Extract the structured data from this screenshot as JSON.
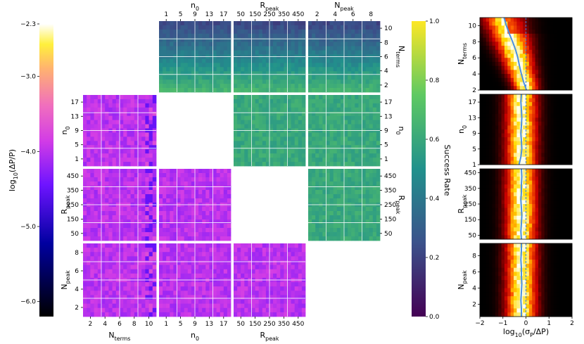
{
  "chart_data": {
    "type": "heatmap",
    "description_grid": "corner-plot of parameter-pair heatmaps with side histograms",
    "parameters": [
      {
        "key": "nterms",
        "base": "N",
        "sub": "terms",
        "ticks": [
          "2",
          "4",
          "6",
          "8",
          "10"
        ],
        "range": [
          1,
          11
        ]
      },
      {
        "key": "n0",
        "base": "n",
        "sub": "0",
        "ticks": [
          "1",
          "5",
          "9",
          "13",
          "17"
        ],
        "range": [
          0,
          19
        ]
      },
      {
        "key": "rpeak",
        "base": "R",
        "sub": "peak",
        "ticks": [
          "50",
          "150",
          "250",
          "350",
          "450"
        ],
        "range": [
          0,
          500
        ]
      },
      {
        "key": "npeak",
        "base": "N",
        "sub": "peak",
        "ticks": [
          "2",
          "4",
          "6",
          "8"
        ],
        "range": [
          0.5,
          9.5
        ]
      }
    ],
    "top_axis": {
      "columns": [
        {
          "base": "n",
          "sub": "0",
          "ticks": [
            "1",
            "5",
            "9",
            "13",
            "17"
          ]
        },
        {
          "base": "R",
          "sub": "peak",
          "ticks": [
            "50",
            "150",
            "250",
            "350",
            "450"
          ]
        },
        {
          "base": "N",
          "sub": "peak",
          "ticks": [
            "2",
            "4",
            "6",
            "8"
          ]
        }
      ]
    },
    "bottom_axis": {
      "columns": [
        {
          "base": "N",
          "sub": "terms",
          "ticks": [
            "2",
            "4",
            "6",
            "8",
            "10"
          ]
        },
        {
          "base": "n",
          "sub": "0",
          "ticks": [
            "1",
            "5",
            "9",
            "13",
            "17"
          ]
        },
        {
          "base": "R",
          "sub": "peak",
          "ticks": [
            "50",
            "150",
            "250",
            "350",
            "450"
          ]
        }
      ]
    },
    "left_axis": {
      "rows": [
        {
          "base": "n",
          "sub": "0",
          "ticks": [
            "17",
            "13",
            "9",
            "5",
            "1"
          ]
        },
        {
          "base": "R",
          "sub": "peak",
          "ticks": [
            "450",
            "350",
            "250",
            "150",
            "50"
          ]
        },
        {
          "base": "N",
          "sub": "peak",
          "ticks": [
            "8",
            "6",
            "4",
            "2"
          ]
        }
      ]
    },
    "right_axis": {
      "rows": [
        {
          "base": "N",
          "sub": "terms",
          "ticks": [
            "10",
            "8",
            "6",
            "4",
            "2"
          ]
        },
        {
          "base": "n",
          "sub": "0",
          "ticks": [
            "17",
            "13",
            "9",
            "5",
            "1"
          ]
        },
        {
          "base": "R",
          "sub": "peak",
          "ticks": [
            "450",
            "350",
            "250",
            "150",
            "50"
          ]
        }
      ]
    },
    "upper_triangle": {
      "metric": "Success Rate",
      "colormap": "viridis",
      "range": [
        0.0,
        1.0
      ],
      "mean_by_row": [
        0.45,
        0.6,
        0.6
      ],
      "nterms_gradient": "success rate rises from ~0.2 at Nterms=10 to ~0.65 at Nterms=2"
    },
    "lower_triangle": {
      "metric": "log10(ΔP/P)",
      "colormap": "gnuplot2",
      "range": [
        -6.2,
        -2.3
      ],
      "typical_value": -4.0
    },
    "colorbar_left": {
      "label": "log10(ΔP/P)",
      "label_base": "log",
      "label_sub": "10",
      "label_rest": "(ΔP/P)",
      "range": [
        -6.2,
        -2.3
      ],
      "ticks": [
        "−2.3",
        "−3.0",
        "−4.0",
        "−5.0",
        "−6.0"
      ],
      "tick_values": [
        -2.3,
        -3.0,
        -4.0,
        -5.0,
        -6.0
      ]
    },
    "colorbar_right": {
      "label": "Success Rate",
      "range": [
        0.0,
        1.0
      ],
      "ticks": [
        "1.0",
        "0.8",
        "0.6",
        "0.4",
        "0.2",
        "0.0"
      ],
      "tick_values": [
        1.0,
        0.8,
        0.6,
        0.4,
        0.2,
        0.0
      ]
    },
    "histograms": {
      "x_label_base": "log",
      "x_label_sub": "10",
      "x_label_rest": "(σ",
      "x_label_sub2": "P",
      "x_label_end": "/ΔP)",
      "x_range": [
        -2,
        2
      ],
      "x_ticks": [
        "−2",
        "−1",
        "0",
        "1",
        "2"
      ],
      "x_tick_values": [
        -2,
        -1,
        0,
        1,
        2
      ],
      "reference_line_x": 0,
      "panels": [
        {
          "param": "nterms",
          "base": "N",
          "sub": "terms",
          "y_ticks": [
            "10",
            "8",
            "6",
            "4",
            "2"
          ],
          "y_values": [
            10,
            8,
            6,
            4,
            2
          ],
          "y_range": [
            2,
            11
          ],
          "median_curve": {
            "y": [
              2,
              3,
              4,
              5,
              6,
              7,
              8,
              9,
              10,
              11
            ],
            "x": [
              0.02,
              -0.1,
              -0.2,
              -0.28,
              -0.35,
              -0.45,
              -0.58,
              -0.72,
              -0.85,
              -0.95
            ]
          }
        },
        {
          "param": "n0",
          "base": "n",
          "sub": "0",
          "y_ticks": [
            "17",
            "13",
            "9",
            "5",
            "1"
          ],
          "y_values": [
            17,
            13,
            9,
            5,
            1
          ],
          "y_range": [
            1,
            19
          ],
          "median_curve": {
            "y": [
              1,
              3,
              5,
              7,
              9,
              11,
              13,
              15,
              17,
              19
            ],
            "x": [
              -0.3,
              -0.22,
              -0.18,
              -0.2,
              -0.22,
              -0.2,
              -0.18,
              -0.2,
              -0.22,
              -0.2
            ]
          }
        },
        {
          "param": "rpeak",
          "base": "R",
          "sub": "peak",
          "y_ticks": [
            "450",
            "350",
            "250",
            "150",
            "50"
          ],
          "y_values": [
            450,
            350,
            250,
            150,
            50
          ],
          "y_range": [
            25,
            475
          ],
          "median_curve": {
            "y": [
              25,
              75,
              125,
              175,
              225,
              275,
              325,
              375,
              425,
              475
            ],
            "x": [
              -0.2,
              -0.22,
              -0.2,
              -0.18,
              -0.2,
              -0.22,
              -0.2,
              -0.2,
              -0.18,
              -0.2
            ]
          }
        },
        {
          "param": "npeak",
          "base": "N",
          "sub": "peak",
          "y_ticks": [
            "8",
            "6",
            "4",
            "2"
          ],
          "y_values": [
            8,
            6,
            4,
            2
          ],
          "y_range": [
            0.5,
            9.5
          ],
          "median_curve": {
            "y": [
              0.5,
              1.5,
              2.5,
              3.5,
              4.5,
              5.5,
              6.5,
              7.5,
              8.5,
              9.5
            ],
            "x": [
              -0.2,
              -0.2,
              -0.22,
              -0.2,
              -0.18,
              -0.2,
              -0.2,
              -0.22,
              -0.2,
              -0.2
            ]
          }
        }
      ],
      "colormap": "hot",
      "peak_x": -0.2,
      "spread": 0.45
    }
  }
}
